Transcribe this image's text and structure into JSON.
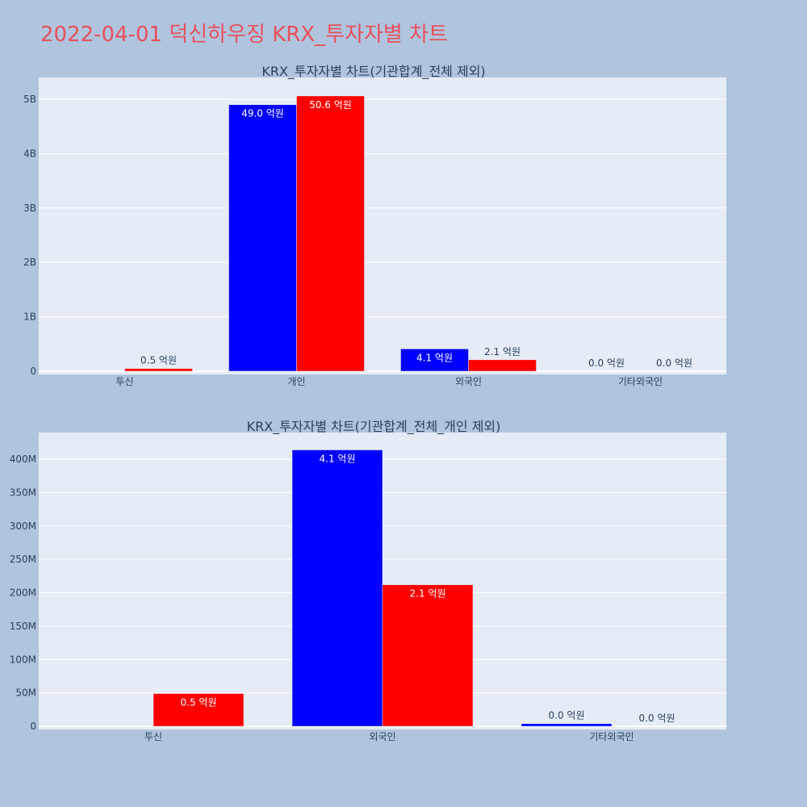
{
  "page_title": "2022-04-01 덕신하우징 KRX_투자자별 차트",
  "colors": {
    "page_bg": "#b0c4de",
    "plot_bg": "#e5ecf6",
    "gridline": "#ffffff",
    "text": "#2a3f5f",
    "title_text": "#e8505b",
    "sell_series": "#0000ff",
    "buy_series": "#ff0000"
  },
  "chart_data": [
    {
      "type": "bar",
      "title": "KRX_투자자별 차트(기관합계_전체 제외)",
      "categories": [
        "투신",
        "개인",
        "외국인",
        "기타외국인"
      ],
      "series": [
        {
          "color": "#0000ff",
          "values": [
            0,
            4900000000,
            410000000,
            0
          ],
          "labels": [
            "",
            "49.0 억원",
            "4.1 억원",
            "0.0 억원"
          ]
        },
        {
          "color": "#ff0000",
          "values": [
            50000000,
            5060000000,
            210000000,
            0
          ],
          "labels": [
            "0.5 억원",
            "50.6 억원",
            "2.1 억원",
            "0.0 억원"
          ]
        }
      ],
      "ylim": [
        0,
        5400000000
      ],
      "yticks": [
        0,
        1000000000,
        2000000000,
        3000000000,
        4000000000,
        5000000000
      ],
      "ytick_labels": [
        "0",
        "1B",
        "2B",
        "3B",
        "4B",
        "5B"
      ],
      "grid": true
    },
    {
      "type": "bar",
      "title": "KRX_투자자별 차트(기관합계_전체_개인 제외)",
      "categories": [
        "투신",
        "외국인",
        "기타외국인"
      ],
      "series": [
        {
          "color": "#0000ff",
          "values": [
            0,
            414000000,
            4000000
          ],
          "labels": [
            "",
            "4.1 억원",
            "0.0 억원"
          ]
        },
        {
          "color": "#ff0000",
          "values": [
            49000000,
            212000000,
            0
          ],
          "labels": [
            "0.5 억원",
            "2.1 억원",
            "0.0 억원"
          ]
        }
      ],
      "ylim": [
        0,
        440000000
      ],
      "yticks": [
        0,
        50000000,
        100000000,
        150000000,
        200000000,
        250000000,
        300000000,
        350000000,
        400000000
      ],
      "ytick_labels": [
        "0",
        "50M",
        "100M",
        "150M",
        "200M",
        "250M",
        "300M",
        "350M",
        "400M"
      ],
      "grid": true
    }
  ]
}
